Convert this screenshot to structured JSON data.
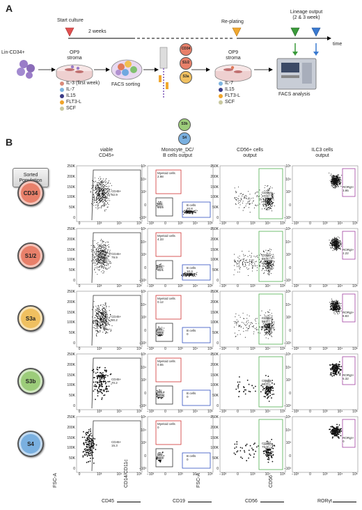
{
  "panel_a": {
    "letter": "A",
    "start_culture": "Start culture",
    "two_weeks": "2 weeks",
    "replating": "Re-plating",
    "lineage_output": "Lineage output\n(2 & 3 week)",
    "time": "time",
    "lin_cd34": "Lin-CD34+",
    "op9_stroma": "OP9\nstroma",
    "op9_stroma_2": "OP9\nstroma",
    "facs_sorting": "FACS sorting",
    "facs_analysis": "FACS analysis",
    "cytokines_1": [
      {
        "label": "IL-3 (first week)",
        "color": "#d98a7a"
      },
      {
        "label": "IL-7",
        "color": "#7fb5e0"
      },
      {
        "label": "IL15",
        "color": "#3b3b86"
      },
      {
        "label": "FLT3-L",
        "color": "#f0a52a"
      },
      {
        "label": "SCF",
        "color": "#c8c8a0"
      }
    ],
    "cytokines_2": [
      {
        "label": "IL-7",
        "color": "#7fb5e0"
      },
      {
        "label": "IL15",
        "color": "#3b3b86"
      },
      {
        "label": "FLT3-L",
        "color": "#f0a52a"
      },
      {
        "label": "SCF",
        "color": "#c8c8a0"
      }
    ],
    "sorted_labels": [
      "CD34",
      "S1/2",
      "S3a",
      "S3b",
      "S4"
    ]
  },
  "panel_b": {
    "letter": "B",
    "sorted_population": "Sorted\nPopulation",
    "columns": [
      "viable\nCD45+",
      "Monocyte_DC/\nB cells output",
      "CD56+ cells\noutput",
      "ILC3 cells\noutput"
    ],
    "rows": [
      {
        "pop": "CD34",
        "color": "#e8806a",
        "cd45": "CD45+\n82.9",
        "myeloid": "Myeloid cells\n2.98",
        "dn": "DN\n64.6",
        "bcells": "B cells\n20.8",
        "cd56": "CD56+\n37.0",
        "ror": "RORgt+\n3.95"
      },
      {
        "pop": "S1/2",
        "color": "#e8806a",
        "cd45": "CD45+\n79.9",
        "myeloid": "Myeloid cells\n4.33",
        "dn": "DN\n41.1",
        "bcells": "B cells\n10.3",
        "cd56": "CD56+\n66.0",
        "ror": "RORgt+\n2.22"
      },
      {
        "pop": "S3a",
        "color": "#f0c060",
        "cd45": "CD45+\n90.2",
        "myeloid": "Myeloid cells\n0.12",
        "dn": "DN\n99.8",
        "bcells": "B cells\n0",
        "cd56": "CD56+\n95.7",
        "ror": "RORgt+\n8.83"
      },
      {
        "pop": "S3b",
        "color": "#9ccc7a",
        "cd45": "CD45+\n70.2",
        "myeloid": "Myeloid cells\n0.65",
        "dn": "DN\n97.5",
        "bcells": "B cells\n0",
        "cd56": "CD56+\n96.7",
        "ror": "RORgt+\n5.32"
      },
      {
        "pop": "S4",
        "color": "#7ab0e0",
        "cd45": "CD45+\n15.3",
        "myeloid": "Myeloid cells\n0",
        "dn": "DN\n92.5",
        "bcells": "B cells\n0",
        "cd56": "CD56+\n75.0",
        "ror": "RORgt+\n0"
      }
    ],
    "x_axes": [
      "CD45",
      "CD19",
      "CD56",
      "RORγt"
    ],
    "y_axes": [
      "FSC-A",
      "CD14/CD11c",
      "FSC-A",
      "CD56"
    ],
    "tick_x_log": [
      "0",
      "10³",
      "10⁴",
      "10⁵"
    ],
    "tick_x_log_neg": [
      "−10³",
      "0",
      "10³",
      "10⁴",
      "10⁵"
    ],
    "tick_y_lin": [
      "250K",
      "200K",
      "150K",
      "100K",
      "50K",
      "0"
    ],
    "tick_y_log": [
      "10⁵",
      "10⁴",
      "10³",
      "0",
      "−10³"
    ]
  }
}
